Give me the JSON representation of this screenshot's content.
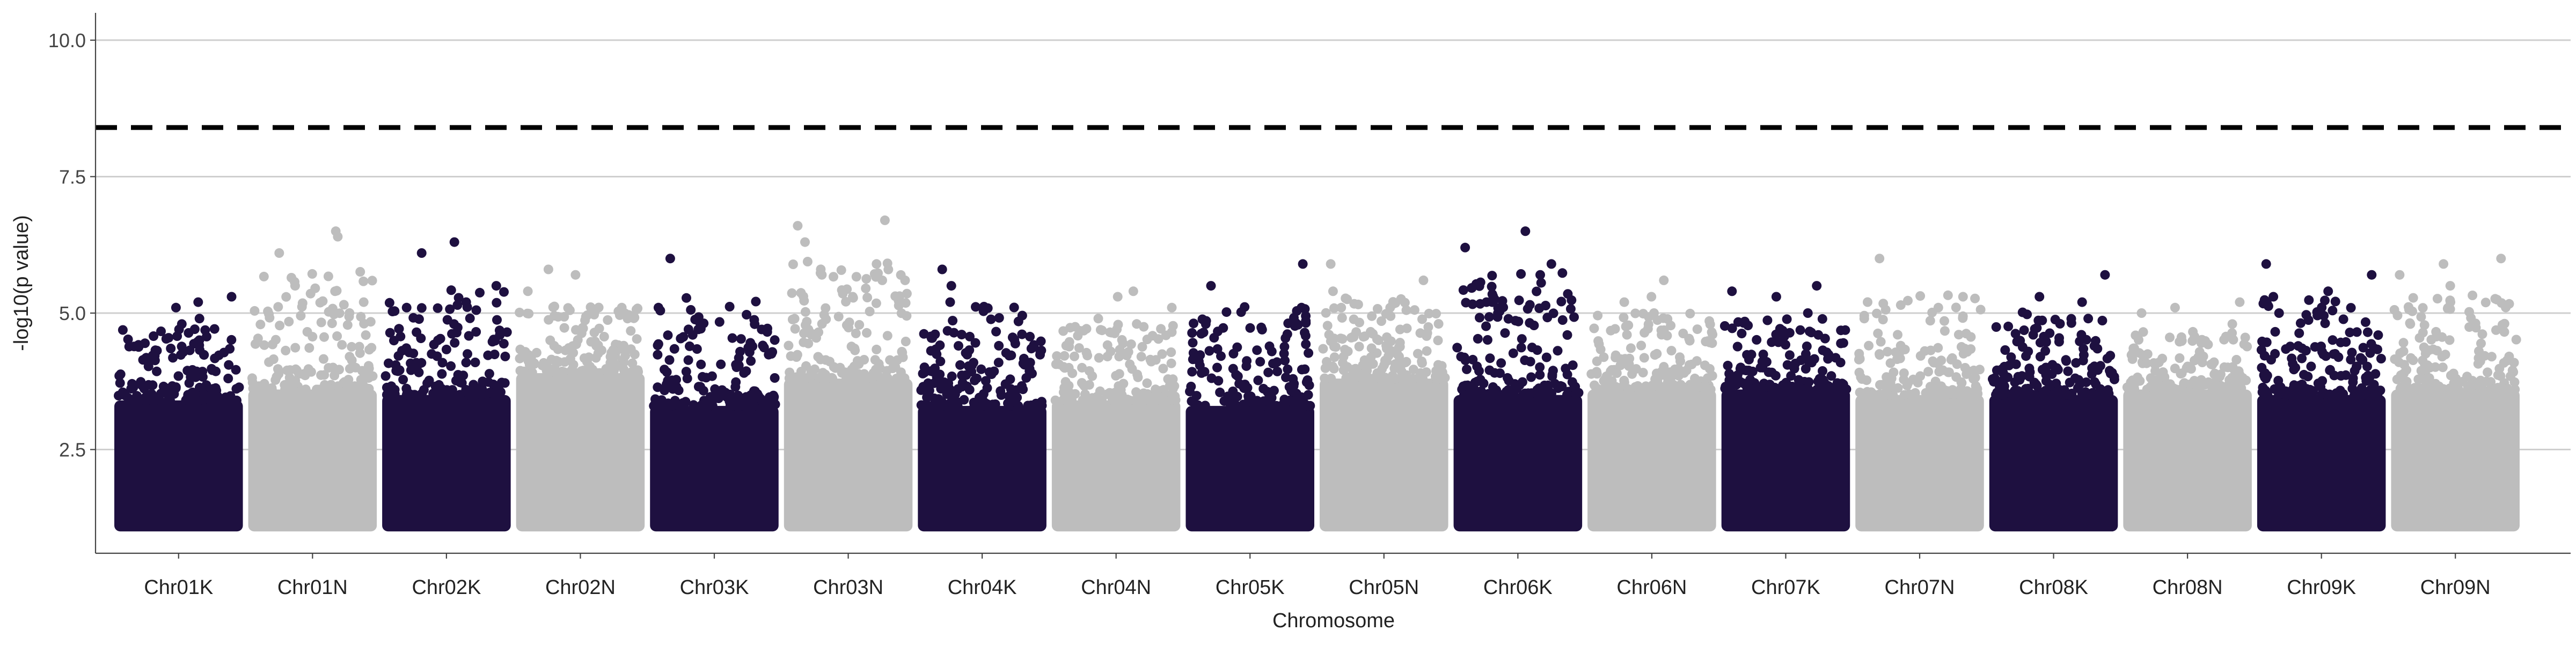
{
  "chart_data": {
    "type": "scatter",
    "title": "",
    "xlabel": "Chromosome",
    "ylabel": "-log10(p value)",
    "ylim": [
      0.6,
      10.5
    ],
    "yticks": [
      2.5,
      5.0,
      7.5,
      10.0
    ],
    "ytick_labels": [
      "2.5",
      "5.0",
      "7.5",
      "10.0"
    ],
    "grid": "horizontal major lines",
    "legend": "none",
    "significance_threshold": 8.4,
    "point_colors": [
      "#1e1040",
      "#bdbdbd"
    ],
    "categories": [
      "Chr01K",
      "Chr01N",
      "Chr02K",
      "Chr02N",
      "Chr03K",
      "Chr03N",
      "Chr04K",
      "Chr04N",
      "Chr05K",
      "Chr05N",
      "Chr06K",
      "Chr06N",
      "Chr07K",
      "Chr07N",
      "Chr08K",
      "Chr08N",
      "Chr09K",
      "Chr09N"
    ],
    "series": [
      {
        "category": "Chr01K",
        "band_floor": 1.0,
        "dense_top": 3.4,
        "max": 5.3,
        "peaks": [
          5.3,
          5.2,
          5.1,
          4.9,
          4.8,
          4.7
        ]
      },
      {
        "category": "Chr01N",
        "band_floor": 1.0,
        "dense_top": 3.6,
        "max": 6.5,
        "peaks": [
          6.5,
          6.4,
          6.1,
          5.5,
          5.4,
          5.2
        ]
      },
      {
        "category": "Chr02K",
        "band_floor": 1.0,
        "dense_top": 3.5,
        "max": 6.3,
        "peaks": [
          6.3,
          6.1,
          5.5,
          5.1,
          4.8
        ]
      },
      {
        "category": "Chr02N",
        "band_floor": 1.0,
        "dense_top": 3.9,
        "max": 5.8,
        "peaks": [
          5.8,
          5.7,
          5.4,
          5.1,
          4.9
        ]
      },
      {
        "category": "Chr03K",
        "band_floor": 1.0,
        "dense_top": 3.3,
        "max": 6.0,
        "peaks": [
          6.0,
          5.1,
          4.7,
          4.6
        ]
      },
      {
        "category": "Chr03N",
        "band_floor": 1.0,
        "dense_top": 3.8,
        "max": 6.7,
        "peaks": [
          6.7,
          6.6,
          6.3,
          5.9,
          5.6,
          5.3
        ]
      },
      {
        "category": "Chr04K",
        "band_floor": 1.0,
        "dense_top": 3.3,
        "max": 5.8,
        "peaks": [
          5.8,
          5.5,
          5.2,
          4.4
        ]
      },
      {
        "category": "Chr04N",
        "band_floor": 1.0,
        "dense_top": 3.4,
        "max": 5.4,
        "peaks": [
          5.4,
          5.3,
          5.1,
          4.9
        ]
      },
      {
        "category": "Chr05K",
        "band_floor": 1.0,
        "dense_top": 3.3,
        "max": 5.9,
        "peaks": [
          5.9,
          5.5,
          5.1,
          4.8
        ]
      },
      {
        "category": "Chr05N",
        "band_floor": 1.0,
        "dense_top": 3.8,
        "max": 5.9,
        "peaks": [
          5.9,
          5.6,
          5.4,
          5.1
        ]
      },
      {
        "category": "Chr06K",
        "band_floor": 1.0,
        "dense_top": 3.5,
        "max": 6.5,
        "peaks": [
          6.5,
          6.2,
          5.9,
          5.7,
          5.2
        ]
      },
      {
        "category": "Chr06N",
        "band_floor": 1.0,
        "dense_top": 3.6,
        "max": 5.6,
        "peaks": [
          5.6,
          5.3,
          5.2,
          5.0
        ]
      },
      {
        "category": "Chr07K",
        "band_floor": 1.0,
        "dense_top": 3.6,
        "max": 5.5,
        "peaks": [
          5.5,
          5.4,
          5.3,
          5.0,
          4.6
        ]
      },
      {
        "category": "Chr07N",
        "band_floor": 1.0,
        "dense_top": 3.5,
        "max": 6.0,
        "peaks": [
          6.0,
          5.3,
          5.1,
          4.9
        ]
      },
      {
        "category": "Chr08K",
        "band_floor": 1.0,
        "dense_top": 3.5,
        "max": 5.7,
        "peaks": [
          5.7,
          5.3,
          5.2,
          4.9
        ]
      },
      {
        "category": "Chr08N",
        "band_floor": 1.0,
        "dense_top": 3.6,
        "max": 5.2,
        "peaks": [
          5.2,
          5.1,
          5.0,
          4.8
        ]
      },
      {
        "category": "Chr09K",
        "band_floor": 1.0,
        "dense_top": 3.5,
        "max": 5.9,
        "peaks": [
          5.9,
          5.7,
          5.4,
          5.3,
          5.0
        ]
      },
      {
        "category": "Chr09N",
        "band_floor": 1.0,
        "dense_top": 3.6,
        "max": 6.0,
        "peaks": [
          6.0,
          5.9,
          5.7,
          5.5,
          5.2
        ]
      }
    ]
  }
}
